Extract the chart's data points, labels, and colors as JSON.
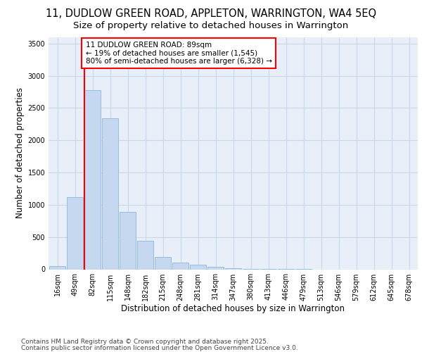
{
  "title_line1": "11, DUDLOW GREEN ROAD, APPLETON, WARRINGTON, WA4 5EQ",
  "title_line2": "Size of property relative to detached houses in Warrington",
  "xlabel": "Distribution of detached houses by size in Warrington",
  "ylabel": "Number of detached properties",
  "categories": [
    "16sqm",
    "49sqm",
    "82sqm",
    "115sqm",
    "148sqm",
    "182sqm",
    "215sqm",
    "248sqm",
    "281sqm",
    "314sqm",
    "347sqm",
    "380sqm",
    "413sqm",
    "446sqm",
    "479sqm",
    "513sqm",
    "546sqm",
    "579sqm",
    "612sqm",
    "645sqm",
    "678sqm"
  ],
  "values": [
    45,
    1120,
    2775,
    2340,
    890,
    440,
    195,
    100,
    70,
    40,
    18,
    5,
    3,
    2,
    1,
    0,
    0,
    0,
    0,
    0,
    0
  ],
  "bar_color": "#c5d8f0",
  "bar_edge_color": "#7aafdc",
  "grid_color": "#c8d8ec",
  "background_color": "#e8eff8",
  "vline_color": "red",
  "vline_bar_index": 2,
  "annotation_line1": "11 DUDLOW GREEN ROAD: 89sqm",
  "annotation_line2": "← 19% of detached houses are smaller (1,545)",
  "annotation_line3": "80% of semi-detached houses are larger (6,328) →",
  "ylim": [
    0,
    3600
  ],
  "yticks": [
    0,
    500,
    1000,
    1500,
    2000,
    2500,
    3000,
    3500
  ],
  "title_fontsize": 10.5,
  "subtitle_fontsize": 9.5,
  "axis_label_fontsize": 8.5,
  "tick_fontsize": 7,
  "annotation_fontsize": 7.5,
  "footer_fontsize": 6.5,
  "footer_line1": "Contains HM Land Registry data © Crown copyright and database right 2025.",
  "footer_line2": "Contains public sector information licensed under the Open Government Licence v3.0."
}
